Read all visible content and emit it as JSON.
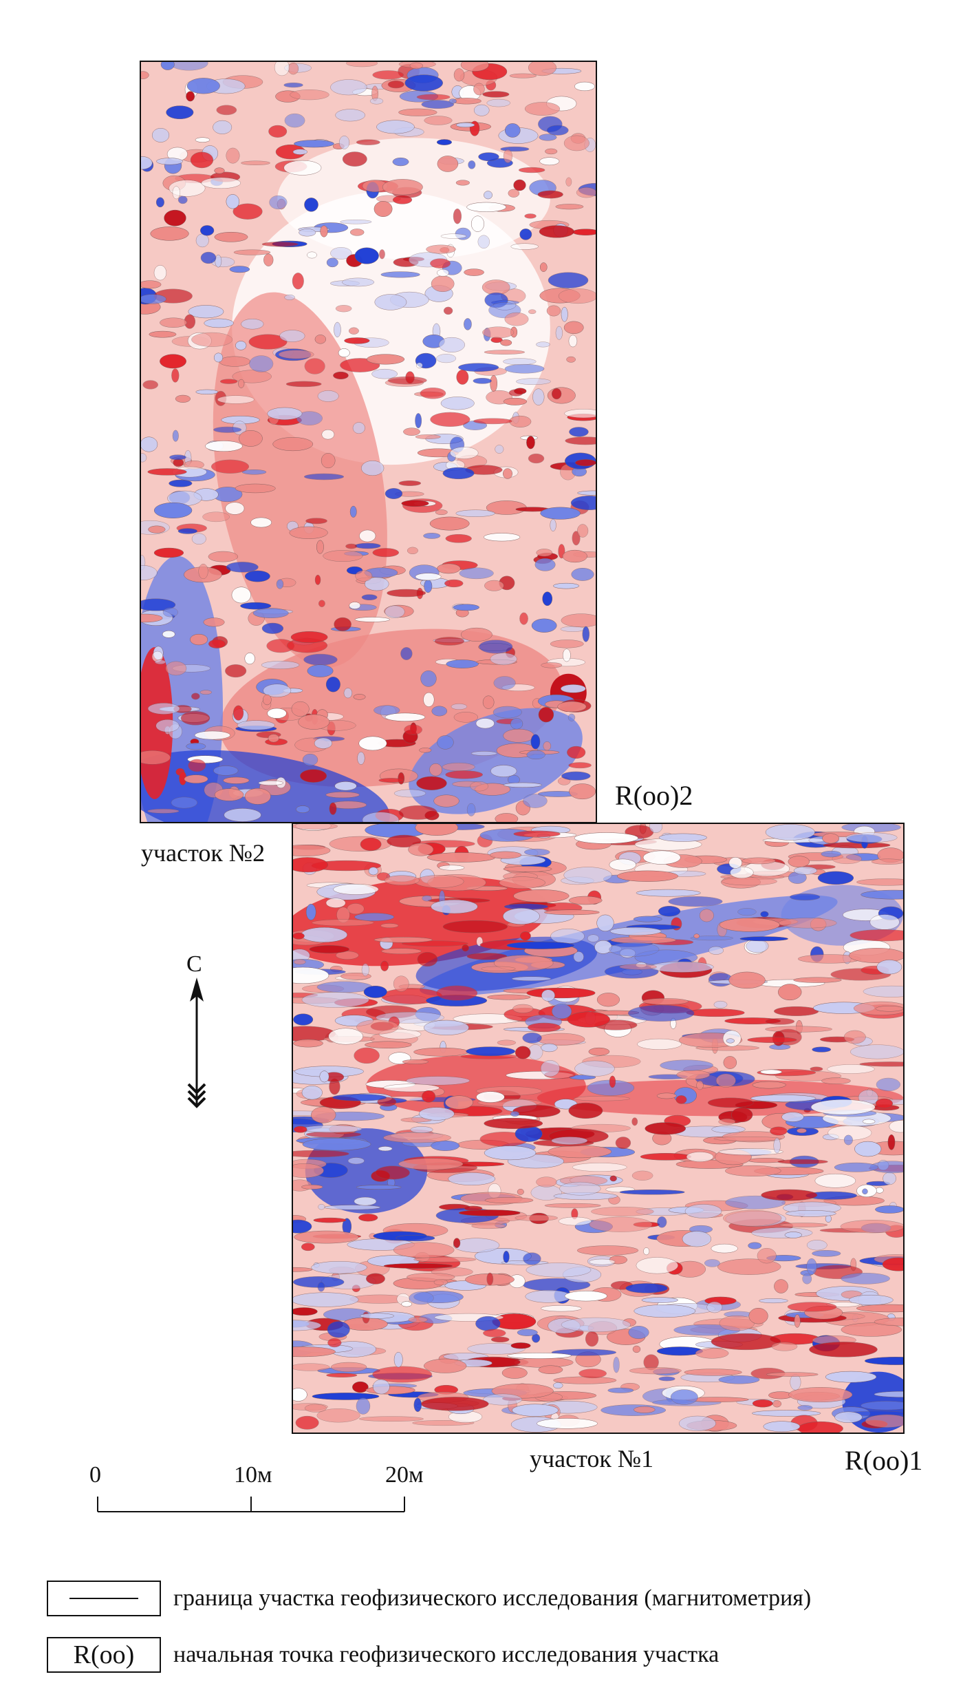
{
  "map": {
    "sites": [
      {
        "id": "site2",
        "label": "участок №2",
        "start_point": "R(оо)2"
      },
      {
        "id": "site1",
        "label": "участок №1",
        "start_point": "R(оо)1"
      }
    ],
    "north_arrow": {
      "letter": "С"
    },
    "scale_bar": {
      "ticks": [
        "0",
        "10м",
        "20м"
      ]
    },
    "colors": {
      "strong_negative": "#1f3fd6",
      "negative": "#6f83e6",
      "weak_negative": "#c9cdf3",
      "neutral": "#ffffff",
      "weak_positive": "#f6c9c4",
      "positive": "#ee8a86",
      "strong_positive": "#e3232b",
      "max_positive": "#c4121c"
    }
  },
  "legend": [
    {
      "symbol_type": "line",
      "symbol_text": "",
      "text": "граница участка геофизического исследования (магнитометрия)"
    },
    {
      "symbol_type": "text",
      "symbol_text": "R(оо)",
      "text": "начальная точка геофизического исследования участка"
    }
  ]
}
